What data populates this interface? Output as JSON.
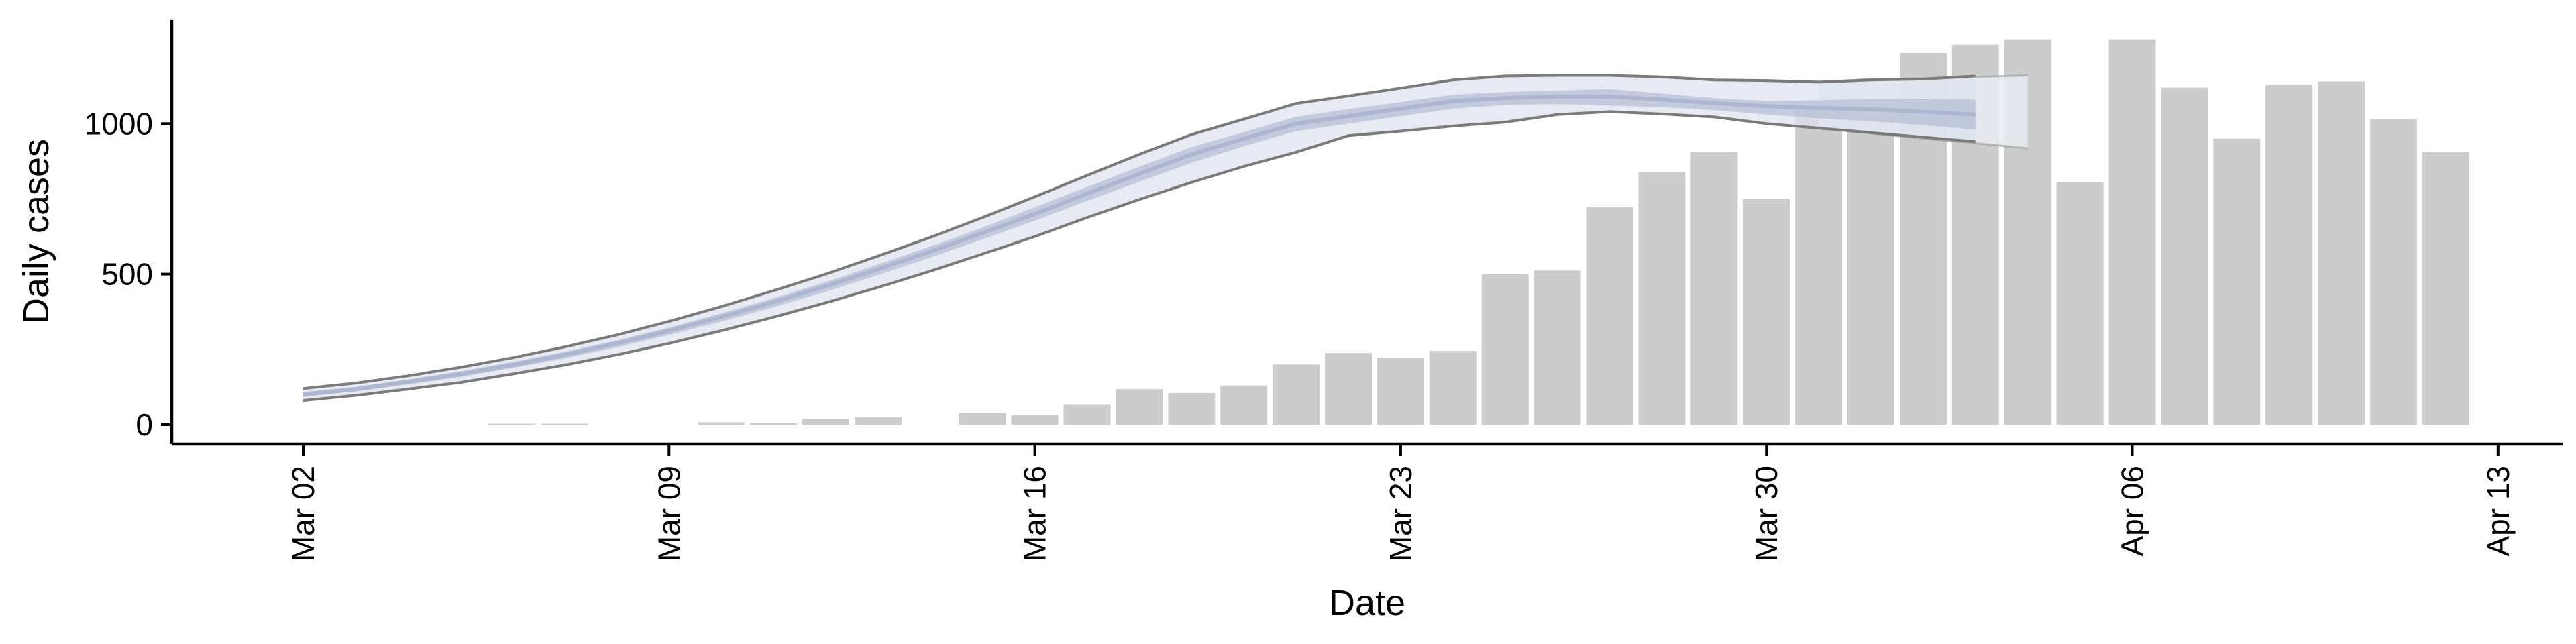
{
  "chart_data": {
    "type": "bar",
    "xlabel": "Date",
    "ylabel": "Daily cases",
    "x_ticks": [
      "Mar 02",
      "Mar 09",
      "Mar 16",
      "Mar 23",
      "Mar 30",
      "Apr 06",
      "Apr 13"
    ],
    "y_ticks": [
      0,
      500,
      1000
    ],
    "ylim": [
      -60,
      1350
    ],
    "xlim": [
      "Feb 26",
      "Apr 14"
    ],
    "grid": false,
    "legend": "none",
    "bar_series": {
      "color": "#cccccc",
      "dates": [
        "Mar 06",
        "Mar 07",
        "Mar 10",
        "Mar 11",
        "Mar 12",
        "Mar 13",
        "Mar 15",
        "Mar 16",
        "Mar 17",
        "Mar 18",
        "Mar 19",
        "Mar 20",
        "Mar 21",
        "Mar 22",
        "Mar 23",
        "Mar 24",
        "Mar 25",
        "Mar 26",
        "Mar 27",
        "Mar 28",
        "Mar 29",
        "Mar 30",
        "Mar 31",
        "Apr 01",
        "Apr 02",
        "Apr 03",
        "Apr 04",
        "Apr 05",
        "Apr 06",
        "Apr 07",
        "Apr 08",
        "Apr 09",
        "Apr 10",
        "Apr 11",
        "Apr 12"
      ],
      "values": [
        2,
        3,
        8,
        5,
        20,
        25,
        38,
        32,
        68,
        118,
        105,
        130,
        200,
        238,
        222,
        245,
        500,
        512,
        722,
        840,
        905,
        750,
        1048,
        1025,
        1235,
        1262,
        1280,
        805,
        1280,
        1120,
        950,
        1130,
        1140,
        1015,
        905
      ]
    },
    "estimate_series": {
      "color": "#b8bfd6",
      "band_color": "#dde1ed",
      "outline_color": "#7a7a7a",
      "dates": [
        "Mar 02",
        "Mar 03",
        "Mar 04",
        "Mar 05",
        "Mar 06",
        "Mar 07",
        "Mar 08",
        "Mar 09",
        "Mar 10",
        "Mar 11",
        "Mar 12",
        "Mar 13",
        "Mar 14",
        "Mar 15",
        "Mar 16",
        "Mar 17",
        "Mar 18",
        "Mar 19",
        "Mar 20",
        "Mar 21",
        "Mar 22",
        "Mar 23",
        "Mar 24",
        "Mar 25",
        "Mar 26",
        "Mar 27",
        "Mar 28",
        "Mar 29",
        "Mar 30",
        "Mar 31",
        "Apr 01",
        "Apr 02",
        "Apr 03"
      ],
      "upper": [
        120,
        138,
        162,
        190,
        222,
        258,
        298,
        343,
        392,
        445,
        500,
        560,
        622,
        688,
        757,
        828,
        898,
        964,
        1015,
        1067,
        1092,
        1118,
        1145,
        1158,
        1160,
        1160,
        1155,
        1145,
        1143,
        1138,
        1145,
        1148,
        1158
      ],
      "mid_upper": [
        108,
        125,
        150,
        177,
        208,
        242,
        280,
        323,
        370,
        420,
        474,
        532,
        592,
        655,
        722,
        790,
        857,
        922,
        972,
        1023,
        1048,
        1072,
        1096,
        1105,
        1110,
        1115,
        1100,
        1085,
        1075,
        1078,
        1082,
        1083,
        1080
      ],
      "center": [
        100,
        118,
        142,
        168,
        198,
        232,
        270,
        312,
        358,
        407,
        460,
        516,
        575,
        637,
        700,
        767,
        833,
        898,
        950,
        1000,
        1025,
        1050,
        1075,
        1085,
        1090,
        1090,
        1080,
        1068,
        1058,
        1052,
        1048,
        1040,
        1030
      ],
      "mid_lower": [
        92,
        110,
        133,
        158,
        188,
        220,
        257,
        298,
        342,
        390,
        442,
        497,
        555,
        616,
        678,
        743,
        807,
        870,
        925,
        975,
        1000,
        1025,
        1050,
        1062,
        1065,
        1060,
        1055,
        1045,
        1030,
        1018,
        1008,
        995,
        980
      ],
      "lower": [
        80,
        97,
        118,
        140,
        168,
        198,
        232,
        270,
        312,
        357,
        405,
        456,
        510,
        567,
        625,
        688,
        748,
        805,
        858,
        905,
        960,
        975,
        992,
        1005,
        1030,
        1040,
        1032,
        1022,
        1000,
        985,
        970,
        955,
        940
      ]
    },
    "ghost_series": {
      "color": "#e9ebf2",
      "dates": [
        "Mar 31",
        "Apr 01",
        "Apr 02",
        "Apr 03",
        "Apr 04"
      ],
      "upper": [
        1138,
        1148,
        1150,
        1155,
        1160
      ],
      "lower": [
        985,
        968,
        950,
        935,
        918
      ]
    }
  }
}
